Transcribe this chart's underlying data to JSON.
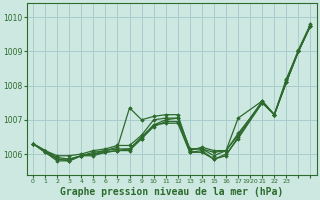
{
  "background_color": "#cce8e0",
  "grid_color": "#aacccc",
  "line_color": "#2d6a2d",
  "title": "Graphe pression niveau de la mer (hPa)",
  "title_fontsize": 7,
  "xlim": [
    -0.5,
    23.5
  ],
  "ylim": [
    1005.4,
    1010.4
  ],
  "yticks": [
    1006,
    1007,
    1008,
    1009,
    1010
  ],
  "series": [
    {
      "x": [
        0,
        1,
        2,
        3,
        4,
        5,
        6,
        7,
        8,
        9,
        10,
        11,
        12,
        13,
        14,
        15,
        16,
        17,
        19,
        20,
        21,
        22,
        23
      ],
      "y": [
        1006.3,
        1006.1,
        1005.85,
        1005.8,
        1005.95,
        1006.05,
        1006.1,
        1006.2,
        1007.35,
        1007.0,
        1007.1,
        1007.15,
        1007.15,
        1006.1,
        1006.2,
        1006.1,
        1006.1,
        1007.05,
        1007.55,
        1007.15,
        1008.2,
        1009.0,
        1009.75
      ]
    },
    {
      "x": [
        0,
        1,
        2,
        3,
        4,
        5,
        6,
        7,
        8,
        9,
        10,
        11,
        12,
        13,
        14,
        15,
        16,
        17,
        19,
        20,
        21,
        22,
        23
      ],
      "y": [
        1006.3,
        1006.1,
        1005.9,
        1005.85,
        1005.95,
        1006.0,
        1006.05,
        1006.1,
        1006.15,
        1006.5,
        1006.85,
        1007.0,
        1007.05,
        1006.15,
        1006.15,
        1006.05,
        1006.1,
        1006.6,
        1007.5,
        1007.15,
        1008.1,
        1009.0,
        1009.75
      ]
    },
    {
      "x": [
        0,
        1,
        2,
        3,
        4,
        5,
        6,
        7,
        8,
        9,
        10,
        11,
        12,
        13,
        14,
        15,
        16,
        17,
        19,
        20,
        21,
        22,
        23
      ],
      "y": [
        1006.3,
        1006.05,
        1005.8,
        1005.8,
        1005.95,
        1005.95,
        1006.05,
        1006.1,
        1006.1,
        1006.45,
        1006.8,
        1006.95,
        1006.95,
        1006.05,
        1006.1,
        1005.85,
        1006.0,
        1006.45,
        1007.5,
        1007.15,
        1008.1,
        1009.0,
        1009.75
      ]
    },
    {
      "x": [
        0,
        1,
        2,
        3,
        4,
        5,
        6,
        7,
        8,
        9,
        10,
        11,
        12,
        13,
        14,
        15,
        16,
        17,
        19,
        20,
        21,
        22,
        23
      ],
      "y": [
        1006.3,
        1006.05,
        1005.85,
        1005.85,
        1005.95,
        1006.0,
        1006.1,
        1006.15,
        1006.15,
        1006.45,
        1006.85,
        1006.9,
        1006.9,
        1006.05,
        1006.05,
        1005.85,
        1005.95,
        1006.5,
        1007.5,
        1007.15,
        1008.1,
        1009.0,
        1009.75
      ]
    },
    {
      "x": [
        0,
        1,
        2,
        3,
        4,
        5,
        6,
        7,
        8,
        9,
        10,
        11,
        12,
        13,
        14,
        15,
        16,
        17,
        19,
        20,
        21,
        22,
        23
      ],
      "y": [
        1006.3,
        1006.1,
        1005.95,
        1005.95,
        1006.0,
        1006.1,
        1006.15,
        1006.25,
        1006.25,
        1006.55,
        1007.0,
        1007.05,
        1007.05,
        1006.15,
        1006.15,
        1005.95,
        1006.1,
        1006.55,
        1007.55,
        1007.15,
        1008.15,
        1009.05,
        1009.8
      ]
    }
  ],
  "xtick_positions": [
    0,
    1,
    2,
    3,
    4,
    5,
    6,
    7,
    8,
    9,
    10,
    11,
    12,
    13,
    14,
    15,
    16,
    17,
    18,
    19,
    20,
    21,
    22,
    23
  ],
  "xtick_labels": [
    "0",
    "1",
    "2",
    "3",
    "4",
    "5",
    "6",
    "7",
    "8",
    "9",
    "10",
    "11",
    "12",
    "13",
    "14",
    "15",
    "16",
    "17",
    "1920",
    "21",
    "22",
    "23",
    "",
    ""
  ]
}
